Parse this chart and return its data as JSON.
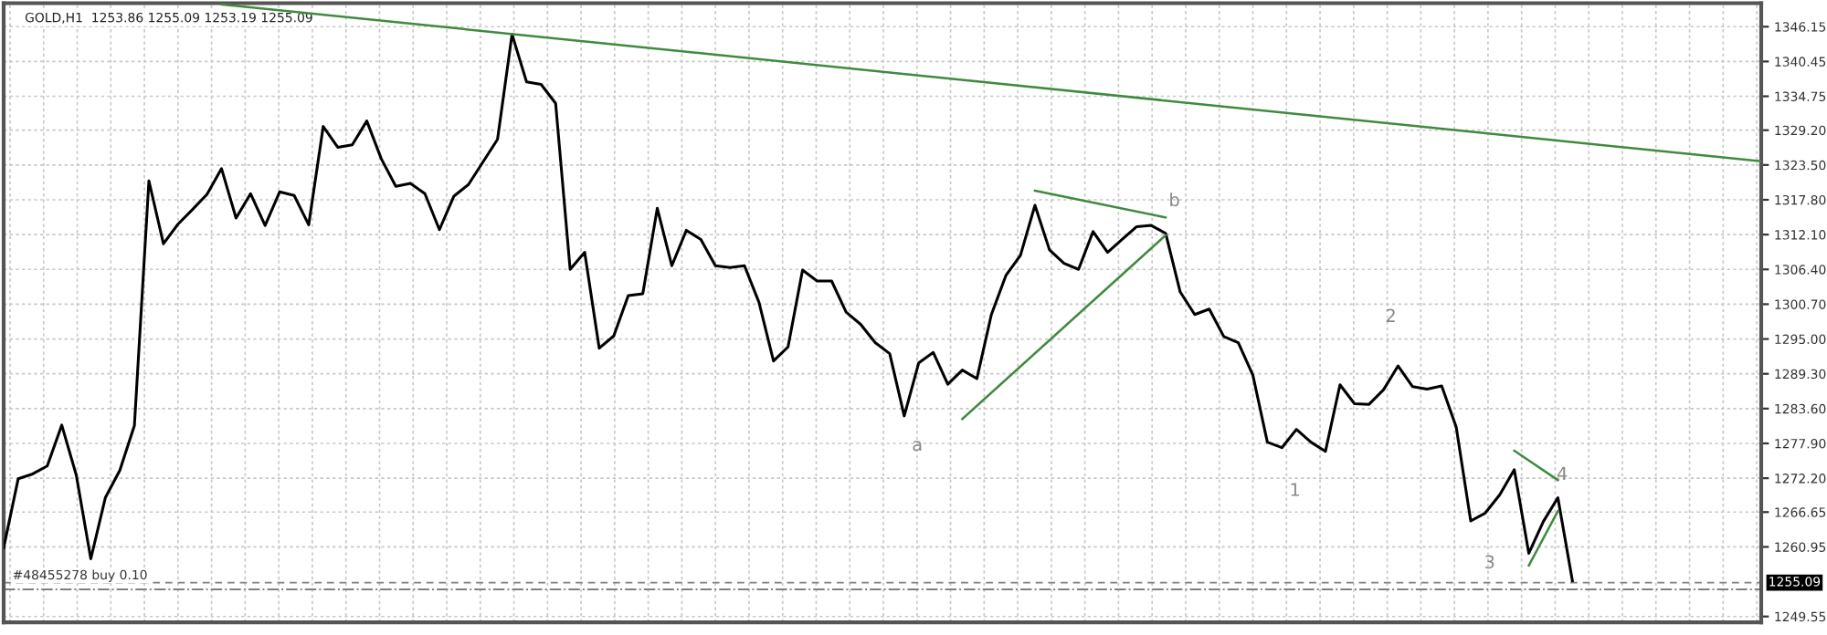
{
  "chart_data": {
    "type": "line",
    "title": "GOLD,H1  1253.86 1255.09 1253.19 1255.09",
    "categories": [
      null,
      null,
      null,
      null,
      null,
      null,
      null,
      null,
      null,
      null,
      null,
      null,
      null,
      null,
      null,
      null,
      null,
      null,
      null,
      null,
      null,
      null,
      null,
      null,
      null,
      null,
      null,
      null,
      null,
      null,
      null,
      null,
      null,
      null,
      null,
      null,
      null,
      null,
      null,
      null,
      null,
      null,
      null,
      null,
      null,
      null,
      null,
      null,
      null,
      null,
      null,
      null,
      null,
      null,
      null,
      null,
      null,
      null,
      null,
      null,
      null,
      null,
      null,
      null,
      null,
      null,
      null,
      null,
      null,
      null,
      null,
      null,
      null,
      null,
      null,
      null,
      null,
      null,
      null,
      null,
      null,
      null,
      null,
      null,
      null,
      null,
      null,
      null,
      null,
      null,
      null,
      null,
      null,
      null,
      null,
      null,
      null,
      null,
      null,
      null,
      null,
      null,
      null,
      null,
      null,
      null,
      null,
      null,
      null,
      null,
      null,
      null,
      null,
      null,
      null,
      null,
      null,
      null,
      null,
      null,
      null,
      null
    ],
    "series": [
      {
        "color": "#000000",
        "values": [
          1260.8,
          1272.1,
          1272.9,
          1274.2,
          1280.9,
          1272.7,
          1259.0,
          1269.0,
          1273.5,
          1280.8,
          1320.9,
          1310.6,
          1313.8,
          1316.2,
          1318.7,
          1322.9,
          1314.8,
          1318.8,
          1313.6,
          1319.1,
          1318.5,
          1313.7,
          1329.8,
          1326.4,
          1326.8,
          1330.7,
          1324.5,
          1320.0,
          1320.5,
          1318.8,
          1312.9,
          1318.4,
          1320.3,
          1324.0,
          1327.7,
          1344.9,
          1337.1,
          1336.7,
          1333.6,
          1306.4,
          1309.2,
          1293.5,
          1295.5,
          1302.1,
          1302.4,
          1316.4,
          1307.0,
          1312.8,
          1311.3,
          1307.0,
          1306.7,
          1307.0,
          1301.0,
          1291.4,
          1293.7,
          1306.3,
          1304.5,
          1304.5,
          1299.4,
          1297.4,
          1294.4,
          1292.6,
          1282.4,
          1291.1,
          1292.8,
          1287.6,
          1289.9,
          1288.5,
          1299.0,
          1305.4,
          1308.7,
          1316.9,
          1309.6,
          1307.4,
          1306.4,
          1312.6,
          1309.2,
          1311.3,
          1313.4,
          1313.6,
          1312.3,
          1302.7,
          1299.0,
          1299.9,
          1295.4,
          1294.4,
          1289.1,
          1278.1,
          1277.2,
          1280.2,
          1278.1,
          1276.6,
          1287.5,
          1284.4,
          1284.3,
          1286.7,
          1290.6,
          1287.2,
          1286.8,
          1287.3,
          1280.6,
          1265.2,
          1266.5,
          1269.5,
          1273.6,
          1259.9,
          1265.1,
          1269.0,
          1255.4,
          null,
          null,
          null,
          null,
          null,
          null,
          null,
          null,
          null,
          null,
          null,
          null,
          null
        ]
      },
      {
        "color": "#3f8a3f",
        "values": [
          null,
          null,
          null,
          null,
          null,
          null,
          null,
          null,
          null,
          null,
          null,
          null,
          null,
          null,
          null,
          1349.8,
          null,
          null,
          null,
          null,
          null,
          null,
          null,
          null,
          null,
          null,
          null,
          null,
          null,
          null,
          null,
          null,
          null,
          null,
          null,
          null,
          null,
          null,
          null,
          null,
          null,
          null,
          null,
          null,
          null,
          null,
          null,
          null,
          null,
          null,
          null,
          null,
          null,
          null,
          null,
          null,
          null,
          null,
          null,
          null,
          null,
          null,
          null,
          null,
          null,
          null,
          null,
          null,
          null,
          null,
          null,
          null,
          null,
          null,
          null,
          null,
          null,
          null,
          null,
          null,
          null,
          null,
          null,
          null,
          null,
          null,
          null,
          null,
          null,
          null,
          null,
          null,
          null,
          null,
          null,
          null,
          null,
          null,
          null,
          null,
          null,
          null,
          null,
          null,
          null,
          null,
          null,
          null,
          null,
          null,
          null,
          null,
          null,
          null,
          null,
          null,
          null,
          null,
          null,
          null,
          null,
          1324.1
        ]
      },
      {
        "color": "#3f8a3f",
        "values": [
          null,
          null,
          null,
          null,
          null,
          null,
          null,
          null,
          null,
          null,
          null,
          null,
          null,
          null,
          null,
          null,
          null,
          null,
          null,
          null,
          null,
          null,
          null,
          null,
          null,
          null,
          null,
          null,
          null,
          null,
          null,
          null,
          null,
          null,
          null,
          null,
          null,
          null,
          null,
          null,
          null,
          null,
          null,
          null,
          null,
          null,
          null,
          null,
          null,
          null,
          null,
          null,
          null,
          null,
          null,
          null,
          null,
          null,
          null,
          null,
          null,
          null,
          null,
          null,
          null,
          null,
          null,
          null,
          null,
          null,
          null,
          1319.3,
          null,
          null,
          null,
          null,
          null,
          null,
          null,
          null,
          1314.9,
          null,
          null,
          null,
          null,
          null,
          null,
          null,
          null,
          null,
          null,
          null,
          null,
          null,
          null,
          null,
          null,
          null,
          null,
          null,
          null,
          null,
          null,
          null,
          null,
          null,
          null,
          null,
          null,
          null,
          null,
          null,
          null,
          null,
          null,
          null,
          null,
          null,
          null,
          null,
          null,
          null
        ]
      },
      {
        "color": "#3f8a3f",
        "values": [
          null,
          null,
          null,
          null,
          null,
          null,
          null,
          null,
          null,
          null,
          null,
          null,
          null,
          null,
          null,
          null,
          null,
          null,
          null,
          null,
          null,
          null,
          null,
          null,
          null,
          null,
          null,
          null,
          null,
          null,
          null,
          null,
          null,
          null,
          null,
          null,
          null,
          null,
          null,
          null,
          null,
          null,
          null,
          null,
          null,
          null,
          null,
          null,
          null,
          null,
          null,
          null,
          null,
          null,
          null,
          null,
          null,
          null,
          null,
          null,
          null,
          null,
          null,
          null,
          null,
          null,
          1281.9,
          null,
          null,
          null,
          null,
          null,
          null,
          null,
          null,
          null,
          null,
          null,
          null,
          null,
          1312.0,
          null,
          null,
          null,
          null,
          null,
          null,
          null,
          null,
          null,
          null,
          null,
          null,
          null,
          null,
          null,
          null,
          null,
          null,
          null,
          null,
          null,
          null,
          null,
          null,
          null,
          null,
          null,
          null,
          null,
          null,
          null,
          null,
          null,
          null,
          null,
          null,
          null,
          null,
          null,
          null,
          null
        ]
      },
      {
        "type": "line",
        "color": "#3f8a3f",
        "values": [
          null,
          null,
          null,
          null,
          null,
          null,
          null,
          null,
          null,
          null,
          null,
          null,
          null,
          null,
          null,
          null,
          null,
          null,
          null,
          null,
          null,
          null,
          null,
          null,
          null,
          null,
          null,
          null,
          null,
          null,
          null,
          null,
          null,
          null,
          null,
          null,
          null,
          null,
          null,
          null,
          null,
          null,
          null,
          null,
          null,
          null,
          null,
          null,
          null,
          null,
          null,
          null,
          null,
          null,
          null,
          null,
          null,
          null,
          null,
          null,
          null,
          null,
          null,
          null,
          null,
          null,
          null,
          null,
          null,
          null,
          null,
          null,
          null,
          null,
          null,
          null,
          null,
          null,
          null,
          null,
          null,
          null,
          null,
          null,
          null,
          null,
          null,
          null,
          null,
          null,
          null,
          null,
          null,
          null,
          null,
          null,
          null,
          null,
          null,
          null,
          null,
          null,
          null,
          null,
          1276.7,
          null,
          null,
          1271.9,
          null,
          null,
          null,
          null,
          null,
          null,
          null,
          null,
          null,
          null,
          null,
          null,
          null,
          null
        ]
      },
      {
        "type": "line",
        "color": "#3f8a3f",
        "values": [
          null,
          null,
          null,
          null,
          null,
          null,
          null,
          null,
          null,
          null,
          null,
          null,
          null,
          null,
          null,
          null,
          null,
          null,
          null,
          null,
          null,
          null,
          null,
          null,
          null,
          null,
          null,
          null,
          null,
          null,
          null,
          null,
          null,
          null,
          null,
          null,
          null,
          null,
          null,
          null,
          null,
          null,
          null,
          null,
          null,
          null,
          null,
          null,
          null,
          null,
          null,
          null,
          null,
          null,
          null,
          null,
          null,
          null,
          null,
          null,
          null,
          null,
          null,
          null,
          null,
          null,
          null,
          null,
          null,
          null,
          null,
          null,
          null,
          null,
          null,
          null,
          null,
          null,
          null,
          null,
          null,
          null,
          null,
          null,
          null,
          null,
          null,
          null,
          null,
          null,
          null,
          null,
          null,
          null,
          null,
          null,
          null,
          null,
          null,
          null,
          null,
          null,
          null,
          null,
          null,
          1257.9,
          null,
          1266.8,
          null,
          null,
          null,
          null,
          null,
          null,
          null,
          null,
          null,
          null,
          null,
          null,
          null,
          null
        ]
      }
    ],
    "ylim": [
      1248.6,
      1350.0
    ],
    "yticks": [
      {
        "value": 1346.15,
        "label": "1346.15"
      },
      {
        "value": 1340.45,
        "label": "1340.45"
      },
      {
        "value": 1334.75,
        "label": "1334.75"
      },
      {
        "value": 1329.2,
        "label": "1329.20"
      },
      {
        "value": 1323.5,
        "label": "1323.50"
      },
      {
        "value": 1317.8,
        "label": "1317.80"
      },
      {
        "value": 1312.1,
        "label": "1312.10"
      },
      {
        "value": 1306.4,
        "label": "1306.40"
      },
      {
        "value": 1300.7,
        "label": "1300.70"
      },
      {
        "value": 1295.0,
        "label": "1295.00"
      },
      {
        "value": 1289.3,
        "label": "1289.30"
      },
      {
        "value": 1283.6,
        "label": "1283.60"
      },
      {
        "value": 1277.9,
        "label": "1277.90"
      },
      {
        "value": 1272.2,
        "label": "1272.20"
      },
      {
        "value": 1266.65,
        "label": "1266.65"
      },
      {
        "value": 1260.95,
        "label": "1260.95"
      },
      {
        "value": 1249.55,
        "label": "1249.55"
      }
    ],
    "tick_labels": "y",
    "grid": true,
    "ref_lines": [
      {
        "axis": "y",
        "value": 1255.09,
        "label": "1255.09",
        "color": "#808080",
        "line_style": "dashed"
      },
      {
        "axis": "y",
        "value": 1254.0,
        "label": "#48455278 buy 0.10",
        "color": "#808080",
        "line_style": "dashdot"
      }
    ],
    "annotations": [
      "a",
      "b",
      "1",
      "2",
      "3",
      "4"
    ]
  }
}
